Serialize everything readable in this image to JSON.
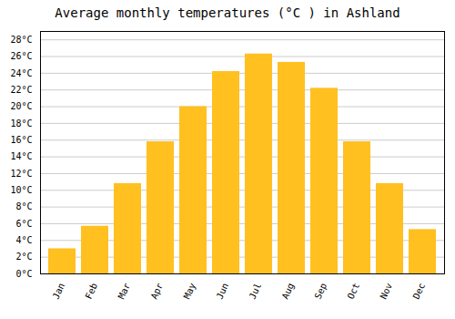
{
  "chart_data": {
    "type": "bar",
    "title": "Average monthly temperatures (°C ) in Ashland",
    "categories": [
      "Jan",
      "Feb",
      "Mar",
      "Apr",
      "May",
      "Jun",
      "Jul",
      "Aug",
      "Sep",
      "Oct",
      "Nov",
      "Dec"
    ],
    "values": [
      3,
      5.7,
      10.8,
      15.8,
      20,
      24.2,
      26.3,
      25.3,
      22.2,
      15.8,
      10.8,
      5.3
    ],
    "color": "#FFC020",
    "ylim": [
      0,
      29
    ],
    "yticks": [
      {
        "value": 0,
        "label": "0°C"
      },
      {
        "value": 2,
        "label": "2°C"
      },
      {
        "value": 4,
        "label": "4°C"
      },
      {
        "value": 6,
        "label": "6°C"
      },
      {
        "value": 8,
        "label": "8°C"
      },
      {
        "value": 10,
        "label": "10°C"
      },
      {
        "value": 12,
        "label": "12°C"
      },
      {
        "value": 14,
        "label": "14°C"
      },
      {
        "value": 16,
        "label": "16°C"
      },
      {
        "value": 18,
        "label": "18°C"
      },
      {
        "value": 20,
        "label": "20°C"
      },
      {
        "value": 22,
        "label": "22°C"
      },
      {
        "value": 24,
        "label": "24°C"
      },
      {
        "value": 26,
        "label": "26°C"
      },
      {
        "value": 28,
        "label": "28°C"
      }
    ],
    "grid": true
  }
}
